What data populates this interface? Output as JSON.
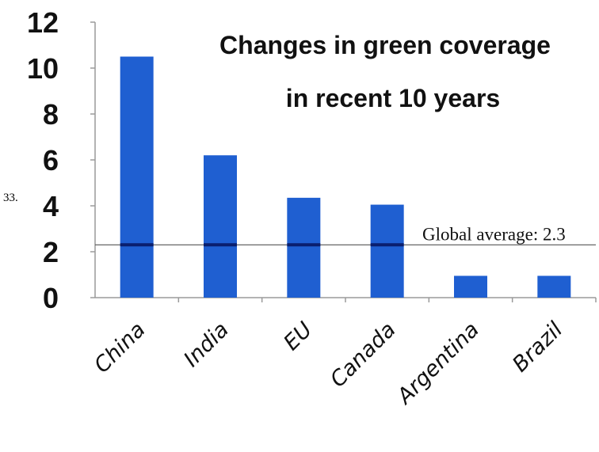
{
  "question_number": "33.",
  "chart_data": {
    "type": "bar",
    "title_lines": [
      "Changes in green coverage",
      "in recent 10 years"
    ],
    "categories": [
      "China",
      "India",
      "EU",
      "Canada",
      "Argentina",
      "Brazil"
    ],
    "values": [
      10.5,
      6.2,
      4.35,
      4.05,
      0.95,
      0.95
    ],
    "ylim": [
      0,
      12
    ],
    "yticks": [
      0,
      2,
      4,
      6,
      8,
      10,
      12
    ],
    "bar_color": "#1f5fd1",
    "reference_line": {
      "label": "Global average: 2.3",
      "value": 2.3,
      "color": "#0a1f6e"
    },
    "grid": false,
    "legend": "none"
  }
}
